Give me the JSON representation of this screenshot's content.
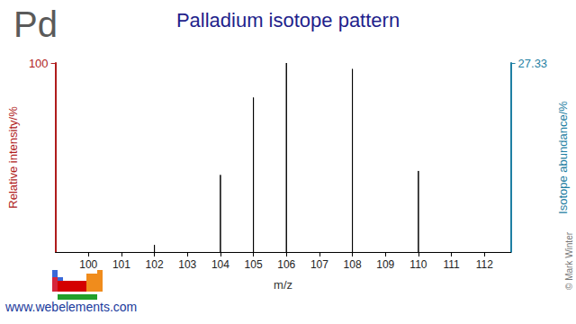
{
  "chart_data": {
    "type": "stem",
    "symbol": "Pd",
    "title": "Palladium isotope pattern",
    "x_label": "m/z",
    "y_label": "Relative intensity/%",
    "y2_label": "Isotope abundance/%",
    "x": [
      102,
      104,
      105,
      106,
      108,
      110
    ],
    "series": [
      {
        "color": "#b01c1c",
        "values": [
          3.73,
          40.76,
          81.71,
          100,
          96.82,
          42.88
        ]
      },
      {
        "color": "#1f7fa3",
        "axis": "y2",
        "values": [
          1.02,
          11.14,
          22.33,
          27.33,
          26.46,
          11.72
        ]
      }
    ],
    "xlim": [
      99,
      112.8
    ],
    "xticks": [
      100,
      101,
      102,
      103,
      104,
      105,
      106,
      107,
      108,
      109,
      110,
      111,
      112
    ],
    "ylim": [
      0,
      100
    ],
    "yticks": [
      100
    ],
    "y2lim": [
      0,
      27.33
    ],
    "y2ticks": [
      27.33
    ],
    "grid": false,
    "data_labels": true,
    "source": "www.webelements.com",
    "credit": "© Mark Winter"
  }
}
